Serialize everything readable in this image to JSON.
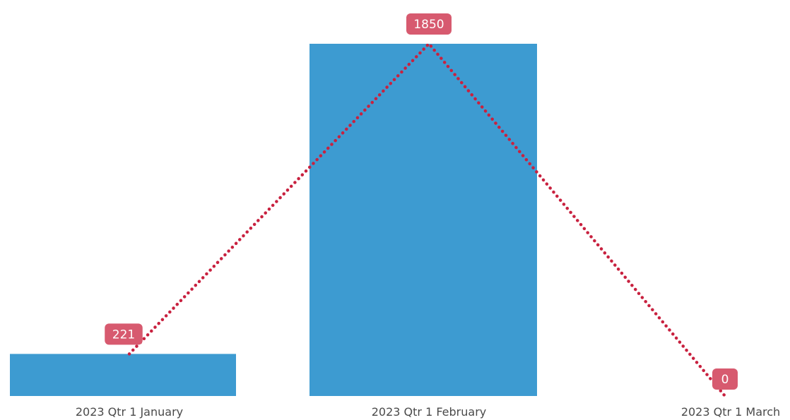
{
  "chart_data": {
    "type": "bar",
    "categories": [
      "2023 Qtr 1 January",
      "2023 Qtr 1 February",
      "2023 Qtr 1 March"
    ],
    "series": [
      {
        "type": "bar",
        "values": [
          221,
          1850,
          0
        ]
      },
      {
        "type": "line",
        "values": [
          221,
          1850,
          0
        ]
      }
    ],
    "data_labels": [
      "221",
      "1850",
      "0"
    ],
    "ylim": [
      0,
      1850
    ],
    "grid": false,
    "legend": "none",
    "colors": {
      "bar": "#3d9bd1",
      "line": "#c8213f",
      "label_bg": "#d75a6f",
      "label_text": "#ffffff",
      "tick_text": "#4a4a4a"
    }
  }
}
